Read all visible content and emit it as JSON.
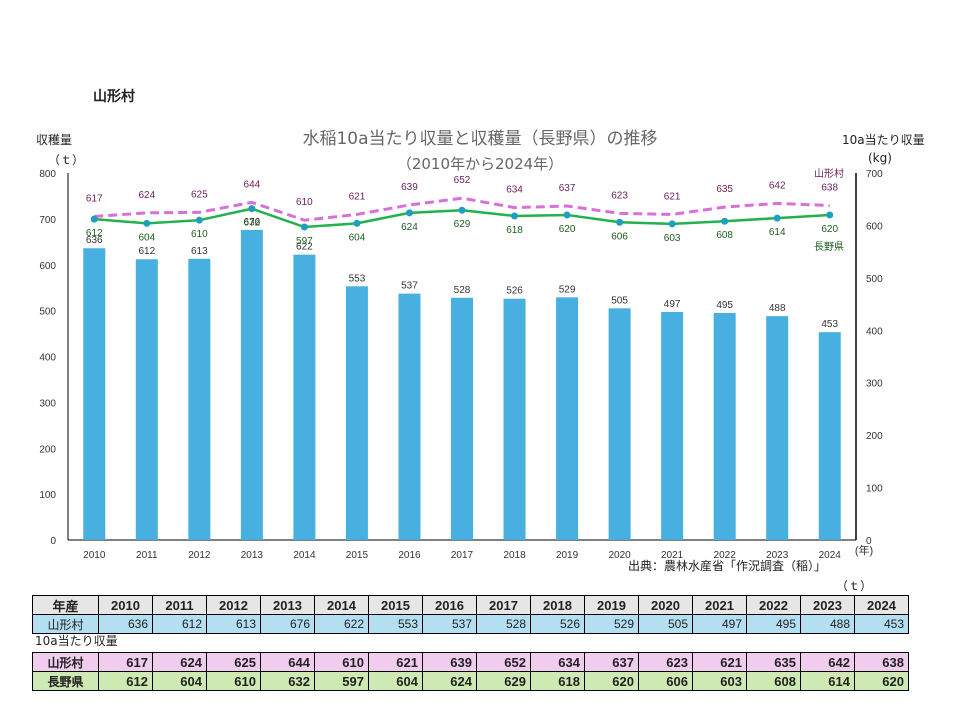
{
  "village_label": "山形村",
  "chart_title_line1": "水稲10a当たり収量と収穫量（長野県）の推移",
  "chart_title_line2": "（2010年から2024年）",
  "left_axis_label": "収穫量",
  "left_axis_unit": "（ｔ）",
  "right_axis_label": "10a当たり収量",
  "right_axis_unit": "(kg)",
  "source": "出典：農林水産省「作況調査（稲）」",
  "table_unit": "（ｔ）",
  "yield_caption": "10a当たり収量",
  "colors": {
    "bar": "#47b0e0",
    "village_line": "#d96fd9",
    "nagano_line": "#22b14c",
    "nagano_marker": "#1f9fc0"
  },
  "chart_data": {
    "type": "bar+line",
    "categories": [
      "2010",
      "2011",
      "2012",
      "2013",
      "2014",
      "2015",
      "2016",
      "2017",
      "2018",
      "2019",
      "2020",
      "2021",
      "2022",
      "2023",
      "2024"
    ],
    "x_unit": "(年)",
    "left_axis": {
      "min": 0,
      "max": 800,
      "step": 100,
      "ticks": [
        "0",
        "100",
        "200",
        "300",
        "400",
        "500",
        "600",
        "700",
        "800"
      ]
    },
    "right_axis": {
      "min": 0,
      "max": 700,
      "step": 100,
      "ticks": [
        "0",
        "100",
        "200",
        "300",
        "400",
        "500",
        "600",
        "700"
      ]
    },
    "series": [
      {
        "name": "山形村 収穫量",
        "kind": "bar",
        "axis": "left",
        "values": [
          636,
          612,
          613,
          676,
          622,
          553,
          537,
          528,
          526,
          529,
          505,
          497,
          495,
          488,
          453
        ]
      },
      {
        "name": "山形村",
        "kind": "line-dashed",
        "axis": "right",
        "values": [
          617,
          624,
          625,
          644,
          610,
          621,
          639,
          652,
          634,
          637,
          623,
          621,
          635,
          642,
          638
        ]
      },
      {
        "name": "長野県",
        "kind": "line",
        "axis": "right",
        "values": [
          612,
          604,
          610,
          632,
          597,
          604,
          624,
          629,
          618,
          620,
          606,
          603,
          608,
          614,
          620
        ]
      }
    ],
    "legend": [
      "山形村",
      "長野県"
    ]
  },
  "table": {
    "year_header": "年産",
    "years": [
      "2010",
      "2011",
      "2012",
      "2013",
      "2014",
      "2015",
      "2016",
      "2017",
      "2018",
      "2019",
      "2020",
      "2021",
      "2022",
      "2023",
      "2024"
    ],
    "harvest_label": "山形村",
    "harvest": [
      "636",
      "612",
      "613",
      "676",
      "622",
      "553",
      "537",
      "528",
      "526",
      "529",
      "505",
      "497",
      "495",
      "488",
      "453"
    ],
    "village_label": "山形村",
    "village_yield": [
      "617",
      "624",
      "625",
      "644",
      "610",
      "621",
      "639",
      "652",
      "634",
      "637",
      "623",
      "621",
      "635",
      "642",
      "638"
    ],
    "nagano_label": "長野県",
    "nagano_yield": [
      "612",
      "604",
      "610",
      "632",
      "597",
      "604",
      "624",
      "629",
      "618",
      "620",
      "606",
      "603",
      "608",
      "614",
      "620"
    ]
  }
}
